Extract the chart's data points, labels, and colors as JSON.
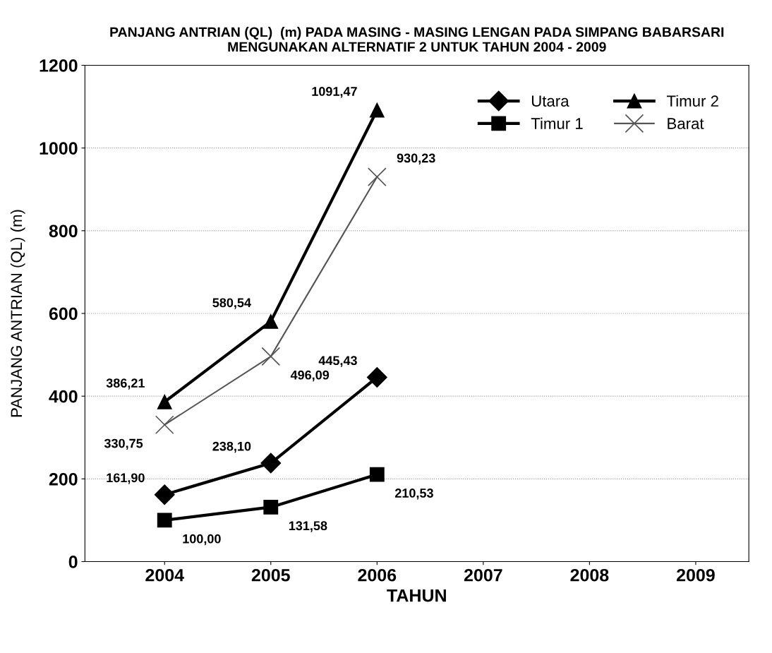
{
  "chart_data": {
    "type": "line",
    "title": "PANJANG ANTRIAN (QL)  (m) PADA MASING - MASING LENGAN PADA SIMPANG BABARSARI\nMENGUNAKAN ALTERNATIF 2 UNTUK TAHUN 2004 - 2009",
    "xlabel": "TAHUN",
    "ylabel": "PANJANG ANTRIAN (QL) (m)",
    "categories": [
      "2004",
      "2005",
      "2006",
      "2007",
      "2008",
      "2009"
    ],
    "series": [
      {
        "name": "Utara",
        "color": "#000000",
        "marker": "diamond",
        "values": [
          161.9,
          238.1,
          445.43,
          null,
          null,
          null
        ],
        "value_labels": [
          "161,90",
          "238,10",
          "445,43",
          null,
          null,
          null
        ]
      },
      {
        "name": "Timur 1",
        "color": "#000000",
        "marker": "square",
        "values": [
          100.0,
          131.58,
          210.53,
          null,
          null,
          null
        ],
        "value_labels": [
          "100,00",
          "131,58",
          "210,53",
          null,
          null,
          null
        ]
      },
      {
        "name": "Timur 2",
        "color": "#000000",
        "marker": "triangle",
        "values": [
          386.21,
          580.54,
          1091.47,
          null,
          null,
          null
        ],
        "value_labels": [
          "386,21",
          "580,54",
          "1091,47",
          null,
          null,
          null
        ]
      },
      {
        "name": "Barat",
        "color": "#555555",
        "marker": "cross",
        "values": [
          330.75,
          496.09,
          930.23,
          null,
          null,
          null
        ],
        "value_labels": [
          "330,75",
          "496,09",
          "930,23",
          null,
          null,
          null
        ]
      }
    ],
    "ylim": [
      0,
      1200
    ],
    "yticks": [
      0,
      200,
      400,
      600,
      800,
      1000,
      1200
    ],
    "grid": "y",
    "legend": "top right"
  }
}
